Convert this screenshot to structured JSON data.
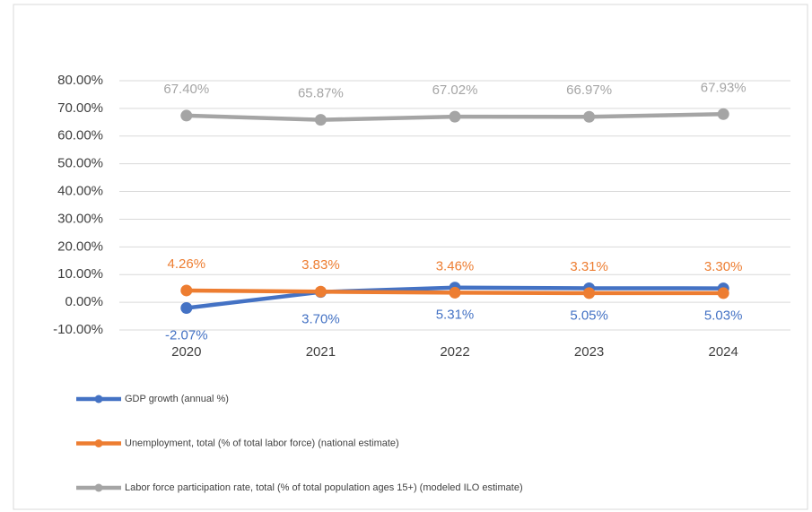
{
  "chart_data": {
    "type": "line",
    "categories": [
      "2020",
      "2021",
      "2022",
      "2023",
      "2024"
    ],
    "series": [
      {
        "name": "GDP growth (annual %)",
        "color": "#4472c4",
        "values": [
          -2.07,
          3.7,
          5.31,
          5.05,
          5.03
        ],
        "value_labels": [
          "-2.07%",
          "3.70%",
          "5.31%",
          "5.05%",
          "5.03%"
        ],
        "label_position": "below"
      },
      {
        "name": "Unemployment, total (% of total labor force) (national estimate)",
        "color": "#ed7d31",
        "values": [
          4.26,
          3.83,
          3.46,
          3.31,
          3.3
        ],
        "value_labels": [
          "4.26%",
          "3.83%",
          "3.46%",
          "3.31%",
          "3.30%"
        ],
        "label_position": "above"
      },
      {
        "name": "Labor force participation rate, total (% of total population ages 15+) (modeled ILO estimate)",
        "color": "#a5a5a5",
        "values": [
          67.4,
          65.87,
          67.02,
          66.97,
          67.93
        ],
        "value_labels": [
          "67.40%",
          "65.87%",
          "67.02%",
          "66.97%",
          "67.93%"
        ],
        "label_position": "above"
      }
    ],
    "ylim": [
      -10,
      80
    ],
    "yticks": [
      {
        "value": -10,
        "label": "-10.00%"
      },
      {
        "value": 0,
        "label": "0.00%"
      },
      {
        "value": 10,
        "label": "10.00%"
      },
      {
        "value": 20,
        "label": "20.00%"
      },
      {
        "value": 30,
        "label": "30.00%"
      },
      {
        "value": 40,
        "label": "40.00%"
      },
      {
        "value": 50,
        "label": "50.00%"
      },
      {
        "value": 60,
        "label": "60.00%"
      },
      {
        "value": 70,
        "label": "70.00%"
      },
      {
        "value": 80,
        "label": "80.00%"
      }
    ],
    "grid": true,
    "legend": "bottom"
  }
}
